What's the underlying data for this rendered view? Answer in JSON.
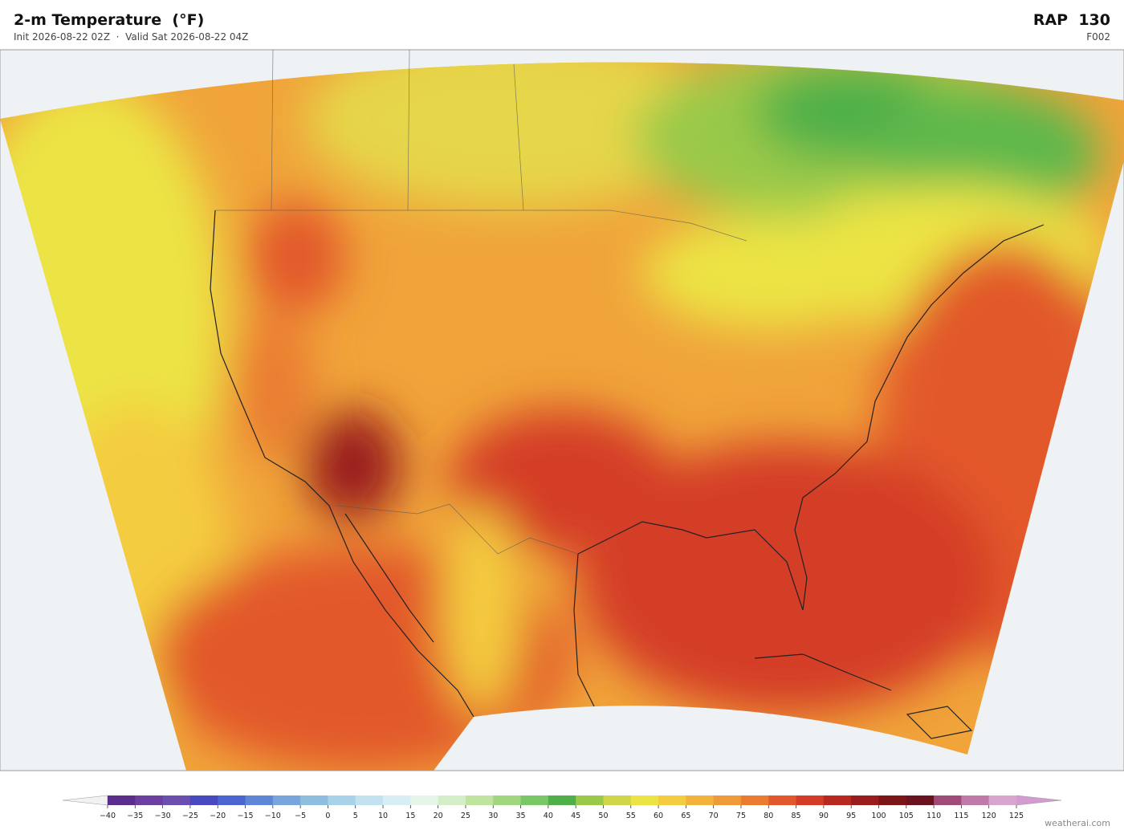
{
  "header": {
    "title": "2-m Temperature  (°F)",
    "subtitle": "Init 2026-08-22 02Z  ·  Valid Sat 2026-08-22 04Z",
    "model": "RAP  130",
    "forecast_hour": "F002"
  },
  "colorbar": {
    "ticks": [
      {
        "value": -40,
        "label": "−40"
      },
      {
        "value": -35,
        "label": "−35"
      },
      {
        "value": -30,
        "label": "−30"
      },
      {
        "value": -25,
        "label": "−25"
      },
      {
        "value": -20,
        "label": "−20"
      },
      {
        "value": -15,
        "label": "−15"
      },
      {
        "value": -10,
        "label": "−10"
      },
      {
        "value": -5,
        "label": "−5"
      },
      0,
      5,
      10,
      15,
      20,
      25,
      30,
      35,
      40,
      45,
      50,
      55,
      60,
      65,
      70,
      75,
      80,
      85,
      90,
      95,
      100,
      105,
      110,
      115,
      120,
      125
    ],
    "colors": [
      "#5a2d8c",
      "#6b3fa0",
      "#6a4fb0",
      "#4848c0",
      "#4a64d0",
      "#5f86d6",
      "#7aa4dc",
      "#8fbde0",
      "#a8d2ea",
      "#c3e2f0",
      "#d8eef2",
      "#e6f5e8",
      "#d4eec8",
      "#bfe4a0",
      "#9fd67e",
      "#79c765",
      "#4fb04a",
      "#9ac94a",
      "#cfd64a",
      "#ece444",
      "#f4cc40",
      "#f3b23c",
      "#ef9a38",
      "#ea7c32",
      "#e2582c",
      "#d43c26",
      "#b8281f",
      "#9a1c1c",
      "#7c1418",
      "#6a1220",
      "#a04a7a",
      "#c07aaa",
      "#d8a6cc"
    ],
    "under_color": "#f2f2f2",
    "over_color": "#d49bd0"
  },
  "footer": {
    "credit": "weatherai.com"
  }
}
